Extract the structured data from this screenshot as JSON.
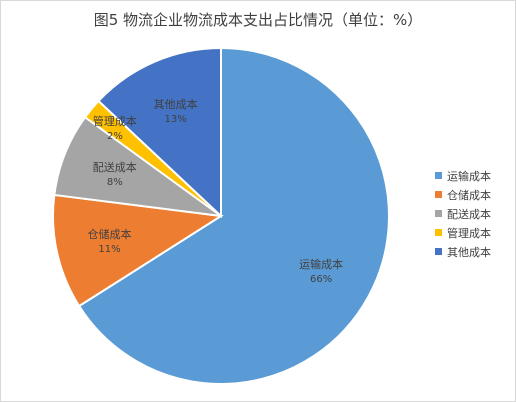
{
  "chart_data": {
    "type": "pie",
    "title": "图5 物流企业物流成本支出占比情况（单位：%）",
    "categories": [
      "运输成本",
      "仓储成本",
      "配送成本",
      "管理成本",
      "其他成本"
    ],
    "values": [
      66,
      11,
      8,
      2,
      13
    ],
    "value_labels": [
      "66%",
      "11%",
      "8%",
      "2%",
      "13%"
    ],
    "colors": [
      "#5B9BD5",
      "#ED7D31",
      "#A5A5A5",
      "#FFC000",
      "#4472C4"
    ],
    "legend_position": "right",
    "start_angle": "12 o'clock",
    "direction": "clockwise"
  }
}
